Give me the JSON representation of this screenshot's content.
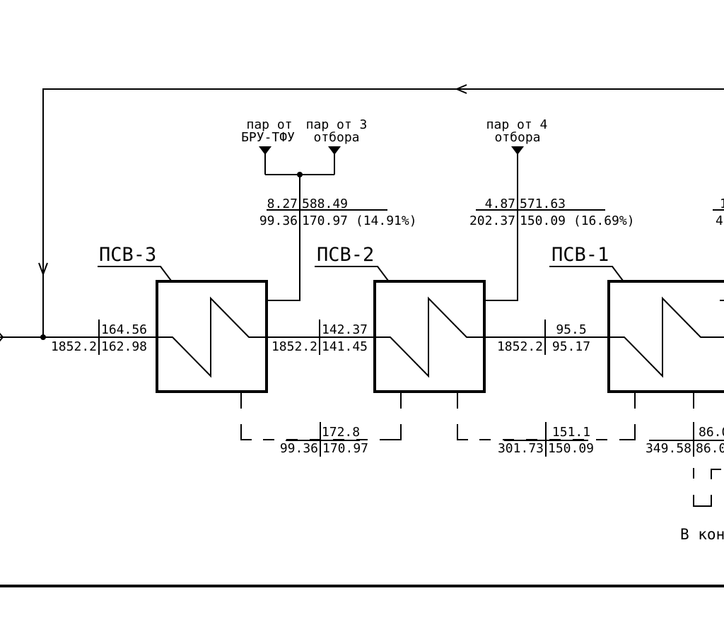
{
  "heaters": [
    {
      "label": "ПСВ-3"
    },
    {
      "label": "ПСВ-2"
    },
    {
      "label": "ПСВ-1"
    }
  ],
  "steam_sources": {
    "bru_line1": "пар от",
    "bru_line2": "БРУ-ТФУ",
    "ext3_line1": "пар от 3",
    "ext3_line2": "отбора",
    "ext4_line1": "пар от 4",
    "ext4_line2": "отбора"
  },
  "steam_params": {
    "psv3": {
      "p": "8.27",
      "h": "588.49",
      "g": "99.36",
      "t": "170.97 (14.91%)"
    },
    "psv2": {
      "p": "4.87",
      "h": "571.63",
      "g": "202.37",
      "t": "150.09 (16.69%)"
    },
    "psv1": {
      "p": "1",
      "g": "4"
    }
  },
  "water_params": {
    "in_psv3": {
      "h": "164.56",
      "g": "1852.2",
      "t": "162.98"
    },
    "in_psv2": {
      "h": "142.37",
      "g": "1852.2",
      "t": "141.45"
    },
    "in_psv1": {
      "h": "95.5",
      "g": "1852.2",
      "t": "95.17"
    }
  },
  "drain_params": {
    "psv3": {
      "h": "172.8",
      "g": "99.36",
      "t": "170.97"
    },
    "psv2": {
      "h": "151.1",
      "g": "301.73",
      "t": "150.09"
    },
    "psv1": {
      "h": "86.0",
      "g": "349.58",
      "t": "86.0"
    }
  },
  "bottom_note": "В кон"
}
